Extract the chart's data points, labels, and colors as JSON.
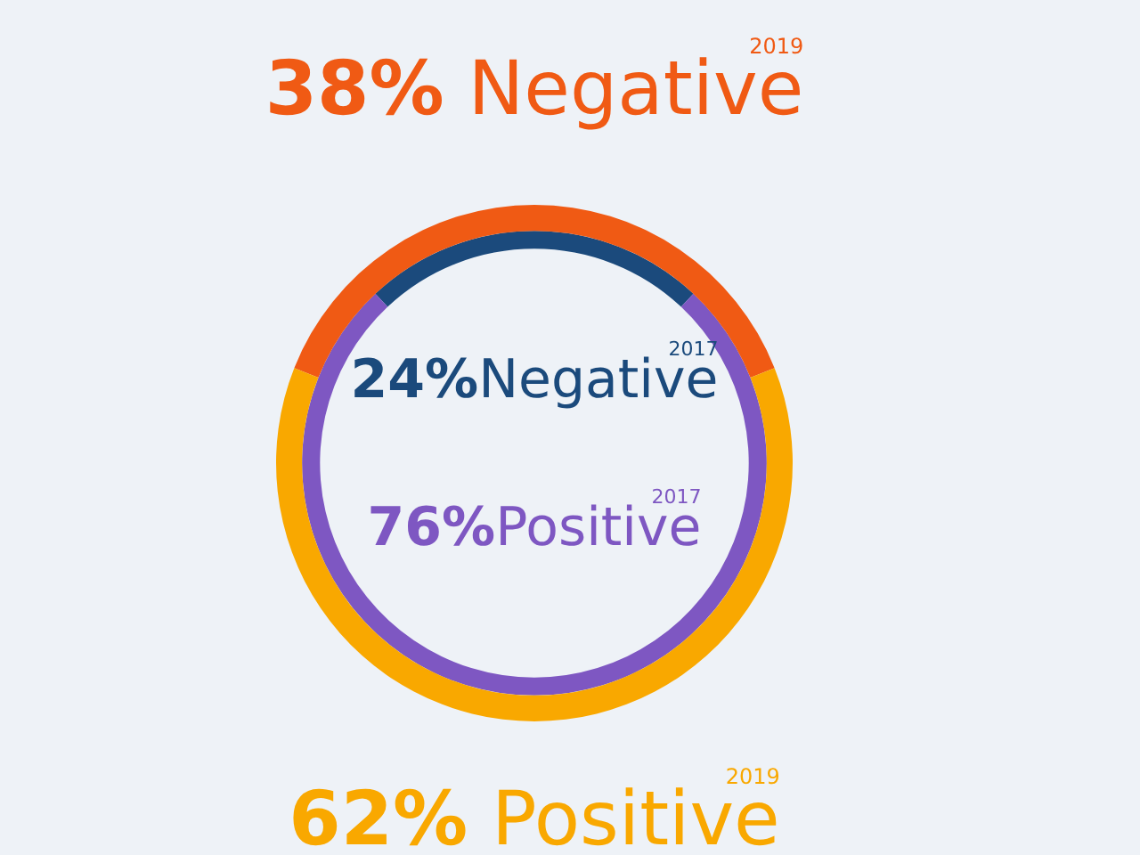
{
  "chart_data": {
    "type": "donut",
    "categories": [
      "Negative",
      "Positive"
    ],
    "series": [
      {
        "name": "2019",
        "values": [
          38,
          62
        ],
        "value_labels": [
          "38%",
          "62%"
        ],
        "colors": [
          "#f05a14",
          "#f9a800"
        ]
      },
      {
        "name": "2017",
        "values": [
          24,
          76
        ],
        "value_labels": [
          "24%",
          "76%"
        ],
        "colors": [
          "#1b4a7c",
          "#7e57c2"
        ]
      }
    ],
    "legend": false
  }
}
